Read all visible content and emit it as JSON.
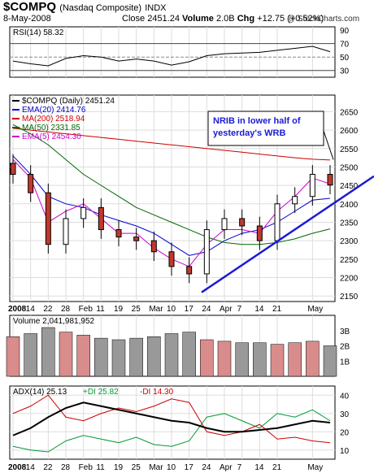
{
  "header": {
    "symbol": "$COMPQ",
    "name": "(Nasdaq Composite)",
    "exchange": "INDX",
    "date": "8-May-2008",
    "close_label": "Close",
    "close": "2451.24",
    "volume_label": "Volume",
    "volume": "2.0B",
    "chg_label": "Chg",
    "chg": "+12.75 (+0.52%)",
    "credit": "@ StockCharts.com"
  },
  "colors": {
    "ema20": "#0000cc",
    "ma200": "#cc0000",
    "ma50": "#006600",
    "ema5": "#cc00cc",
    "up_volume": "#d98c8c",
    "down_volume": "#999999",
    "trendline": "#1b1bd6",
    "adx": "#000000",
    "plus_di": "#009933",
    "minus_di": "#cc0000"
  },
  "chart_data": [
    {
      "type": "line",
      "panel": "RSI",
      "legend": "RSI(14) 58.32",
      "ylim": [
        20,
        95
      ],
      "yticks": [
        90,
        70,
        50,
        30
      ],
      "reference_lines": [
        70,
        50,
        30
      ],
      "x_dates": [
        "Jan-9",
        "Jan-14",
        "Jan-22",
        "Jan-28",
        "Feb-4",
        "Feb-11",
        "Feb-19",
        "Feb-25",
        "Mar-3",
        "Mar-10",
        "Mar-17",
        "Mar-24",
        "Apr-1",
        "Apr-7",
        "Apr-14",
        "Apr-21",
        "Apr-28",
        "May-5",
        "May-8"
      ],
      "series": [
        {
          "name": "RSI(14)",
          "values": [
            44,
            40,
            37,
            48,
            52,
            50,
            44,
            47,
            44,
            38,
            43,
            52,
            55,
            56,
            57,
            60,
            63,
            66,
            58
          ]
        }
      ]
    },
    {
      "type": "candlestick",
      "panel": "Price",
      "legend": "$COMPQ (Daily) 2451.24",
      "ylim": [
        2135,
        2695
      ],
      "yticks": [
        2650,
        2600,
        2550,
        2500,
        2450,
        2400,
        2350,
        2300,
        2250,
        2200,
        2150
      ],
      "x_dates": [
        "Jan-9",
        "Jan-14",
        "Jan-22",
        "Jan-28",
        "Feb-4",
        "Feb-11",
        "Feb-19",
        "Feb-25",
        "Mar-3",
        "Mar-10",
        "Mar-17",
        "Mar-24",
        "Apr-1",
        "Apr-7",
        "Apr-14",
        "Apr-21",
        "Apr-28",
        "May-5",
        "May-8"
      ],
      "close_values": [
        2480,
        2430,
        2290,
        2360,
        2390,
        2330,
        2310,
        2300,
        2270,
        2230,
        2210,
        2330,
        2360,
        2340,
        2300,
        2400,
        2420,
        2480,
        2451
      ],
      "series": [
        {
          "name": "EMA(20)",
          "last": "2414.76",
          "values": [
            2530,
            2480,
            2420,
            2400,
            2390,
            2370,
            2355,
            2340,
            2320,
            2290,
            2260,
            2270,
            2300,
            2320,
            2330,
            2350,
            2380,
            2410,
            2415
          ]
        },
        {
          "name": "MA(200)",
          "last": "2518.94",
          "values": [
            2605,
            2600,
            2595,
            2590,
            2585,
            2580,
            2575,
            2570,
            2565,
            2560,
            2555,
            2550,
            2545,
            2540,
            2535,
            2530,
            2525,
            2521,
            2519
          ]
        },
        {
          "name": "MA(50)",
          "last": "2331.85",
          "values": [
            2615,
            2590,
            2560,
            2520,
            2480,
            2450,
            2420,
            2390,
            2370,
            2350,
            2330,
            2310,
            2295,
            2290,
            2290,
            2295,
            2305,
            2320,
            2332
          ]
        },
        {
          "name": "EMA(5)",
          "last": "2454.30",
          "values": [
            2520,
            2470,
            2350,
            2380,
            2400,
            2360,
            2320,
            2320,
            2280,
            2250,
            2230,
            2290,
            2330,
            2330,
            2320,
            2380,
            2420,
            2470,
            2454
          ]
        }
      ],
      "annotation": "NRIB in lower half of yesterday's WRB"
    },
    {
      "type": "bar",
      "panel": "Volume",
      "legend": "Volume 2,041,981,952",
      "ylim": [
        0,
        4
      ],
      "yticks": [
        "3B",
        "2B",
        "1B"
      ],
      "x_dates": [
        "Jan-9",
        "Jan-14",
        "Jan-22",
        "Jan-28",
        "Feb-4",
        "Feb-11",
        "Feb-19",
        "Feb-25",
        "Mar-3",
        "Mar-10",
        "Mar-17",
        "Mar-24",
        "Apr-1",
        "Apr-7",
        "Apr-14",
        "Apr-21",
        "Apr-28",
        "May-5",
        "May-8"
      ],
      "series": [
        {
          "name": "Volume",
          "values": [
            2.6,
            2.8,
            3.2,
            2.9,
            2.7,
            2.5,
            2.4,
            2.5,
            2.6,
            2.8,
            2.9,
            2.4,
            2.3,
            2.2,
            2.2,
            2.1,
            2.2,
            2.3,
            2.0
          ]
        }
      ]
    },
    {
      "type": "line",
      "panel": "ADX",
      "legend": [
        "ADX(14) 25.13",
        "+DI 25.82",
        "-DI 14.30"
      ],
      "ylim": [
        5,
        45
      ],
      "yticks": [
        40,
        30,
        20,
        10
      ],
      "x_dates": [
        "Jan-9",
        "Jan-14",
        "Jan-22",
        "Jan-28",
        "Feb-4",
        "Feb-11",
        "Feb-19",
        "Feb-25",
        "Mar-3",
        "Mar-10",
        "Mar-17",
        "Mar-24",
        "Apr-1",
        "Apr-7",
        "Apr-14",
        "Apr-21",
        "Apr-28",
        "May-5",
        "May-8"
      ],
      "series": [
        {
          "name": "ADX(14)",
          "values": [
            18,
            22,
            28,
            33,
            36,
            34,
            32,
            30,
            28,
            26,
            25,
            22,
            20,
            20,
            21,
            22,
            24,
            26,
            25
          ]
        },
        {
          "name": "+DI",
          "values": [
            12,
            10,
            9,
            15,
            18,
            16,
            14,
            17,
            13,
            12,
            15,
            28,
            30,
            26,
            22,
            30,
            28,
            32,
            26
          ]
        },
        {
          "name": "-DI",
          "values": [
            30,
            34,
            40,
            28,
            26,
            30,
            33,
            31,
            34,
            38,
            36,
            20,
            18,
            20,
            24,
            16,
            17,
            15,
            14
          ]
        }
      ]
    }
  ],
  "x_axis": {
    "labels": [
      {
        "text": "2008",
        "x": 0
      },
      {
        "text": "14",
        "x": 1
      },
      {
        "text": "22",
        "x": 2
      },
      {
        "text": "28",
        "x": 3
      },
      {
        "text": "Feb",
        "x": 4
      },
      {
        "text": "11",
        "x": 5
      },
      {
        "text": "19",
        "x": 6
      },
      {
        "text": "25",
        "x": 7
      },
      {
        "text": "Mar",
        "x": 8
      },
      {
        "text": "10",
        "x": 9
      },
      {
        "text": "17",
        "x": 10
      },
      {
        "text": "24",
        "x": 11
      },
      {
        "text": "Apr",
        "x": 12
      },
      {
        "text": "7",
        "x": 13
      },
      {
        "text": "14",
        "x": 14
      },
      {
        "text": "21",
        "x": 15
      },
      {
        "text": "May",
        "x": 17
      }
    ]
  }
}
